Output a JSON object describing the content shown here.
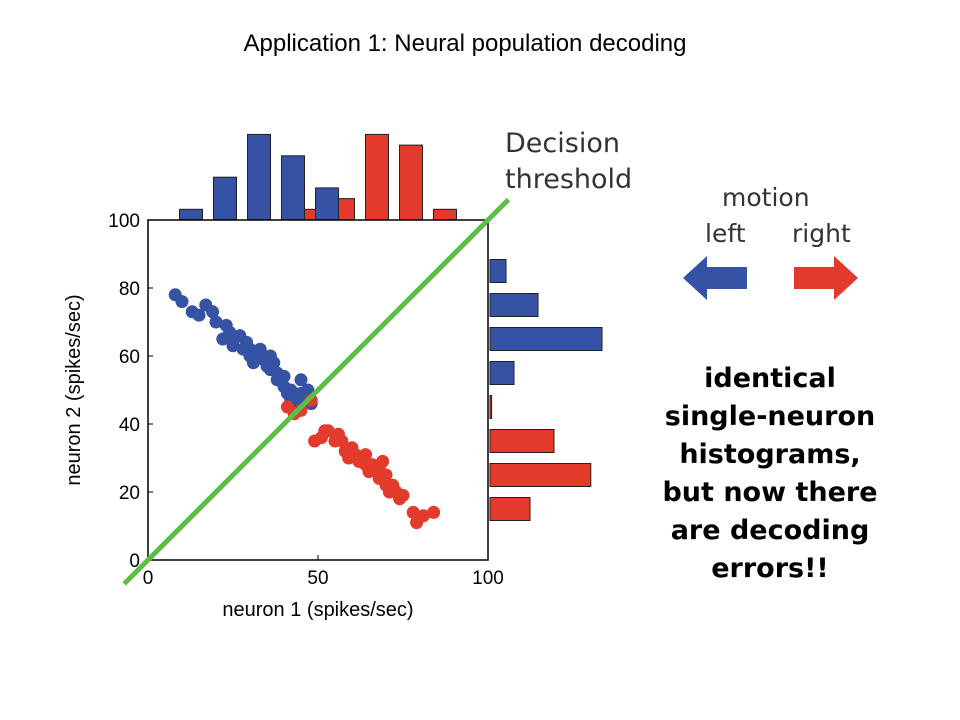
{
  "slide": {
    "title": "Application 1:  Neural population decoding"
  },
  "annotations": {
    "decision_threshold": [
      "Decision",
      "threshold"
    ],
    "legend_heading": "motion",
    "legend_left": "left",
    "legend_right": "right",
    "note_lines": [
      "identical",
      "single-neuron",
      "histograms,",
      "but now there",
      "are decoding",
      "errors!!"
    ]
  },
  "colors": {
    "blue": "#3552a5",
    "red": "#e33a2c",
    "green": "#5bbf47",
    "text": "#333333"
  },
  "icons": {
    "left_arrow": "arrow-left-icon",
    "right_arrow": "arrow-right-icon"
  },
  "chart_data": {
    "type": "scatter",
    "xlabel": "neuron 1 (spikes/sec)",
    "ylabel": "neuron 2 (spikes/sec)",
    "xlim": [
      0,
      100
    ],
    "ylim": [
      0,
      100
    ],
    "xticks": [
      0,
      50,
      100
    ],
    "yticks": [
      0,
      20,
      40,
      60,
      80,
      100
    ],
    "series": [
      {
        "name": "left",
        "color": "#3552a5",
        "points": [
          [
            8,
            78
          ],
          [
            10,
            76
          ],
          [
            13,
            73
          ],
          [
            15,
            72
          ],
          [
            17,
            75
          ],
          [
            19,
            73
          ],
          [
            20,
            70
          ],
          [
            22,
            65
          ],
          [
            23,
            69
          ],
          [
            24,
            67
          ],
          [
            25,
            64
          ],
          [
            25,
            63
          ],
          [
            27,
            66
          ],
          [
            28,
            62
          ],
          [
            29,
            64
          ],
          [
            30,
            62
          ],
          [
            30,
            60
          ],
          [
            31,
            58
          ],
          [
            32,
            61
          ],
          [
            33,
            62
          ],
          [
            34,
            59
          ],
          [
            35,
            57
          ],
          [
            36,
            60
          ],
          [
            36,
            56
          ],
          [
            37,
            58
          ],
          [
            38,
            55
          ],
          [
            38,
            53
          ],
          [
            40,
            54
          ],
          [
            40,
            51
          ],
          [
            41,
            49
          ],
          [
            42,
            50
          ],
          [
            42,
            47
          ],
          [
            43,
            49
          ],
          [
            44,
            46
          ],
          [
            45,
            49
          ],
          [
            45,
            53
          ],
          [
            46,
            47
          ],
          [
            47,
            50
          ],
          [
            48,
            46
          ]
        ]
      },
      {
        "name": "right",
        "color": "#e33a2c",
        "points": [
          [
            41,
            45
          ],
          [
            43,
            43
          ],
          [
            45,
            44
          ],
          [
            48,
            47
          ],
          [
            49,
            35
          ],
          [
            51,
            36
          ],
          [
            52,
            38
          ],
          [
            53,
            38
          ],
          [
            55,
            35
          ],
          [
            56,
            37
          ],
          [
            57,
            35
          ],
          [
            58,
            32
          ],
          [
            59,
            30
          ],
          [
            60,
            33
          ],
          [
            61,
            31
          ],
          [
            62,
            29
          ],
          [
            63,
            30
          ],
          [
            64,
            28
          ],
          [
            64,
            31
          ],
          [
            65,
            26
          ],
          [
            66,
            28
          ],
          [
            67,
            27
          ],
          [
            68,
            24
          ],
          [
            68,
            27
          ],
          [
            69,
            29
          ],
          [
            70,
            22
          ],
          [
            70,
            25
          ],
          [
            71,
            20
          ],
          [
            72,
            22
          ],
          [
            73,
            20
          ],
          [
            74,
            18
          ],
          [
            75,
            19
          ],
          [
            78,
            14
          ],
          [
            79,
            11
          ],
          [
            81,
            13
          ],
          [
            84,
            14
          ]
        ]
      },
      {
        "name": "neuron 1 histogram",
        "kind": "bar",
        "bins": [
          15,
          25,
          35,
          45,
          55,
          65,
          75,
          85
        ],
        "left_counts": [
          1,
          4,
          8,
          6,
          3,
          0,
          0,
          0
        ],
        "right_counts": [
          0,
          0,
          0,
          0,
          2,
          8,
          7,
          1
        ],
        "right_extra": [
          0,
          0,
          0,
          1,
          0,
          0,
          0,
          0
        ]
      },
      {
        "name": "neuron 2 histogram",
        "kind": "barh",
        "bins": [
          85,
          75,
          65,
          55,
          45,
          35,
          25,
          15
        ],
        "left_counts": [
          1,
          3,
          7,
          1.5,
          0,
          0,
          0,
          0
        ],
        "right_counts": [
          0,
          0,
          0,
          0.2,
          0.1,
          4,
          6.3,
          2.5
        ]
      }
    ],
    "threshold_line": {
      "from": [
        -7,
        -7
      ],
      "to": [
        106,
        106
      ]
    }
  }
}
